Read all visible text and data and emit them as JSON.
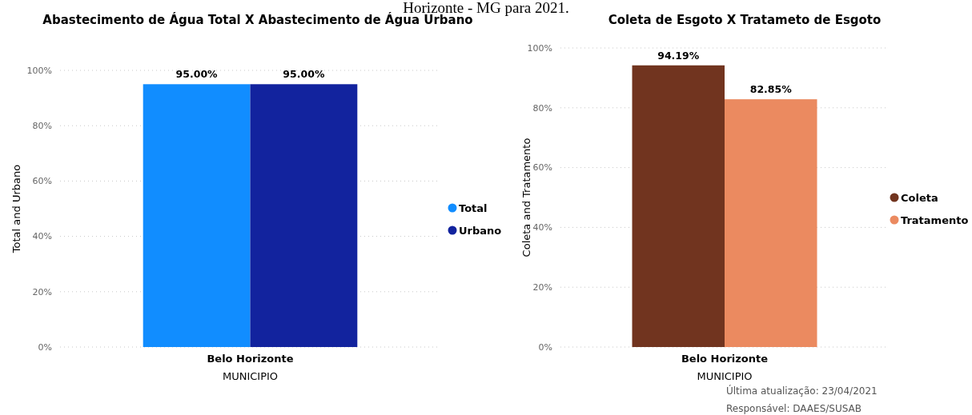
{
  "chart_data": [
    {
      "type": "bar",
      "title": "Abastecimento de Água Total X Abastecimento de Água Urbano",
      "xlabel": "MUNICIPIO",
      "ylabel": "Total and Urbano",
      "categories": [
        "Belo Horizonte"
      ],
      "series": [
        {
          "name": "Total",
          "color": "#118dff",
          "values": [
            95
          ],
          "value_labels": [
            "95.00%"
          ]
        },
        {
          "name": "Urbano",
          "color": "#12239e",
          "values": [
            95
          ],
          "value_labels": [
            "95.00%"
          ]
        }
      ],
      "ylim": [
        0,
        100
      ],
      "yticks": [
        {
          "value": 0,
          "label": "0%"
        },
        {
          "value": 20,
          "label": "20%"
        },
        {
          "value": 40,
          "label": "40%"
        },
        {
          "value": 60,
          "label": "60%"
        },
        {
          "value": 80,
          "label": "80%"
        },
        {
          "value": 100,
          "label": "100%"
        }
      ],
      "grid": "y",
      "legend": "right",
      "annotations": [
        "Horizonte - MG para 2021."
      ]
    },
    {
      "type": "bar",
      "title": "Coleta de Esgoto X Tratameto de Esgoto",
      "xlabel": "MUNICIPIO",
      "ylabel": "Coleta and Tratamento",
      "categories": [
        "Belo Horizonte"
      ],
      "series": [
        {
          "name": "Coleta",
          "color": "#71341f",
          "values": [
            94.19
          ],
          "value_labels": [
            "94.19%"
          ]
        },
        {
          "name": "Tratamento",
          "color": "#eb8a60",
          "values": [
            82.85
          ],
          "value_labels": [
            "82.85%"
          ]
        }
      ],
      "ylim": [
        0,
        100
      ],
      "yticks": [
        {
          "value": 0,
          "label": "0%"
        },
        {
          "value": 20,
          "label": "20%"
        },
        {
          "value": 40,
          "label": "40%"
        },
        {
          "value": 60,
          "label": "60%"
        },
        {
          "value": 80,
          "label": "80%"
        },
        {
          "value": 100,
          "label": "100%"
        }
      ],
      "grid": "y",
      "legend": "right",
      "annotations": [
        "Última atualização: 23/04/2021",
        "Responsável: DAAES/SUSAB"
      ]
    }
  ]
}
